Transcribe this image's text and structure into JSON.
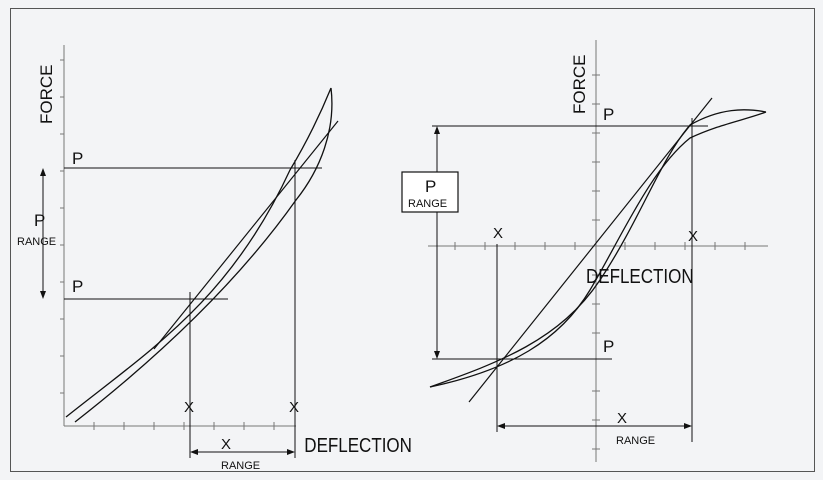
{
  "left": {
    "force_label": "FORCE",
    "deflection_label": "DEFLECTION",
    "p_upper": "P",
    "p_lower": "P",
    "p_range_p": "P",
    "p_range_text": "RANGE",
    "x_left": "X",
    "x_right": "X",
    "x_range_x": "X",
    "x_range_text": "RANGE"
  },
  "right": {
    "force_label": "FORCE",
    "deflection_label": "DEFLECTION",
    "p_upper": "P",
    "p_lower": "P",
    "p_range_p": "P",
    "p_range_text": "RANGE",
    "x_left": "X",
    "x_right": "X",
    "x_range_x": "X",
    "x_range_text": "RANGE"
  },
  "colors": {
    "line": "#111111",
    "tick": "#777777",
    "background": "#f3f4f6"
  }
}
